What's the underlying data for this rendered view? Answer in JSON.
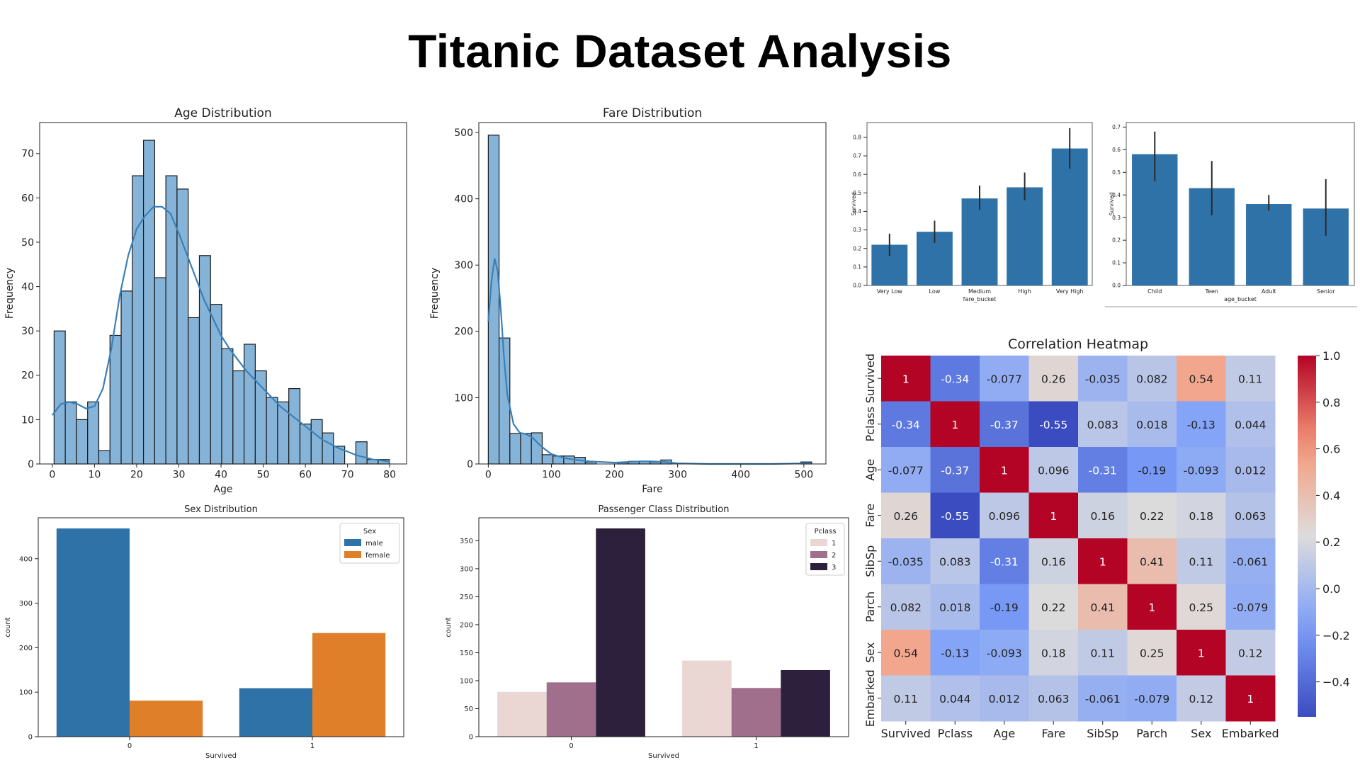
{
  "page": {
    "title": "Titanic Dataset Analysis"
  },
  "colors": {
    "hist_fill": "#86b4d8",
    "hist_line": "#3a80b8",
    "male": "#2e72a8",
    "female": "#e07f2a",
    "pclass1": "#ead7d3",
    "pclass2": "#a06f8c",
    "pclass3": "#2d203c",
    "bucket_bar": "#2e72a8"
  },
  "chart_data": [
    {
      "id": "age",
      "type": "bar",
      "title": "Age Distribution",
      "xlabel": "Age",
      "ylabel": "Frequency",
      "xlim": [
        -3,
        84
      ],
      "ylim": [
        0,
        77
      ],
      "xticks": [
        0,
        10,
        20,
        30,
        40,
        50,
        60,
        70,
        80
      ],
      "yticks": [
        0,
        10,
        20,
        30,
        40,
        50,
        60,
        70
      ],
      "bin_start": 0.42,
      "bin_width": 2.65,
      "values": [
        30,
        14,
        10,
        14,
        3,
        29,
        39,
        65,
        73,
        42,
        65,
        62,
        33,
        47,
        36,
        26,
        21,
        27,
        21,
        15,
        14,
        17,
        9,
        10,
        7,
        4,
        0,
        5,
        1,
        1
      ],
      "kde": {
        "x": [
          0,
          2,
          4,
          6,
          8,
          10,
          12,
          14,
          16,
          18,
          20,
          22,
          24,
          26,
          28,
          30,
          32,
          34,
          36,
          38,
          40,
          42,
          44,
          46,
          48,
          50,
          52,
          54,
          56,
          58,
          60,
          62,
          64,
          66,
          68,
          70,
          72,
          74,
          76,
          78,
          80
        ],
        "y": [
          11,
          13.5,
          14,
          13.5,
          12.5,
          13,
          17,
          26,
          38,
          47,
          53,
          56,
          58,
          58,
          56.5,
          52,
          47,
          42,
          37,
          33,
          29,
          26,
          23.5,
          21,
          19,
          17,
          15,
          13,
          11.5,
          10,
          8.5,
          7,
          5.5,
          4.5,
          3.5,
          2.8,
          2,
          1.5,
          1,
          0.8,
          0.5
        ]
      }
    },
    {
      "id": "fare",
      "type": "bar",
      "title": "Fare Distribution",
      "xlabel": "Fare",
      "ylabel": "Frequency",
      "xlim": [
        -15,
        535
      ],
      "ylim": [
        0,
        515
      ],
      "xticks": [
        0,
        100,
        200,
        300,
        400,
        500
      ],
      "yticks": [
        0,
        100,
        200,
        300,
        400,
        500
      ],
      "bin_start": 0,
      "bin_width": 17.08,
      "values": [
        496,
        190,
        46,
        46,
        47,
        14,
        12,
        12,
        10,
        3,
        0,
        0,
        2,
        4,
        4,
        3,
        6,
        0,
        0,
        0,
        0,
        0,
        0,
        0,
        0,
        0,
        0,
        0,
        0,
        3
      ],
      "kde": {
        "x": [
          0,
          5,
          10,
          15,
          20,
          25,
          30,
          40,
          50,
          60,
          70,
          80,
          90,
          100,
          120,
          140,
          160,
          180,
          200,
          220,
          240,
          260,
          280,
          300,
          350,
          400,
          450,
          500,
          512
        ],
        "y": [
          215,
          275,
          310,
          290,
          230,
          160,
          105,
          60,
          47,
          45,
          40,
          30,
          22,
          15,
          9,
          6,
          4,
          3,
          2,
          3,
          4,
          4,
          3,
          1,
          0,
          0,
          0,
          1,
          1
        ]
      }
    },
    {
      "id": "fare_bucket",
      "type": "bar",
      "categories": [
        "Very Low",
        "Low",
        "Medium",
        "High",
        "Very High"
      ],
      "values": [
        0.22,
        0.29,
        0.47,
        0.53,
        0.74
      ],
      "ci": [
        [
          0.16,
          0.28
        ],
        [
          0.23,
          0.35
        ],
        [
          0.41,
          0.54
        ],
        [
          0.46,
          0.61
        ],
        [
          0.63,
          0.85
        ]
      ],
      "xlabel": "fare_bucket",
      "ylabel": "Survived",
      "ylim": [
        0,
        0.88
      ],
      "yticks": [
        "0.0",
        "0.1",
        "0.2",
        "0.3",
        "0.4",
        "0.5",
        "0.6",
        "0.7",
        "0.8"
      ]
    },
    {
      "id": "age_bucket",
      "type": "bar",
      "categories": [
        "Child",
        "Teen",
        "Adult",
        "Senior"
      ],
      "values": [
        0.58,
        0.43,
        0.36,
        0.34
      ],
      "ci": [
        [
          0.46,
          0.68
        ],
        [
          0.31,
          0.55
        ],
        [
          0.33,
          0.4
        ],
        [
          0.22,
          0.47
        ]
      ],
      "xlabel": "age_bucket",
      "ylabel": "Survived",
      "ylim": [
        0,
        0.72
      ],
      "yticks": [
        "0.0",
        "0.1",
        "0.2",
        "0.3",
        "0.4",
        "0.5",
        "0.6",
        "0.7"
      ]
    },
    {
      "id": "sex",
      "type": "bar",
      "title": "Sex Distribution",
      "categories": [
        "0",
        "1"
      ],
      "series": [
        {
          "name": "male",
          "values": [
            468,
            109
          ]
        },
        {
          "name": "female",
          "values": [
            81,
            233
          ]
        }
      ],
      "xlabel": "Survived",
      "ylabel": "count",
      "ylim": [
        0,
        492
      ],
      "yticks": [
        0,
        100,
        200,
        300,
        400
      ],
      "legend": {
        "title": "Sex",
        "position": "top-right"
      }
    },
    {
      "id": "pclass",
      "type": "bar",
      "title": "Passenger Class Distribution",
      "categories": [
        "0",
        "1"
      ],
      "series": [
        {
          "name": "1",
          "values": [
            80,
            136
          ]
        },
        {
          "name": "2",
          "values": [
            97,
            87
          ]
        },
        {
          "name": "3",
          "values": [
            372,
            119
          ]
        }
      ],
      "xlabel": "Survived",
      "ylabel": "count",
      "ylim": [
        0,
        391
      ],
      "yticks": [
        0,
        50,
        100,
        150,
        200,
        250,
        300,
        350
      ],
      "legend": {
        "title": "Pclass",
        "position": "top-right"
      }
    },
    {
      "id": "corr",
      "type": "heatmap",
      "title": "Correlation Heatmap",
      "labels": [
        "Survived",
        "Pclass",
        "Age",
        "Fare",
        "SibSp",
        "Parch",
        "Sex",
        "Embarked"
      ],
      "matrix": [
        [
          "1",
          "-0.34",
          "-0.077",
          "0.26",
          "-0.035",
          "0.082",
          "0.54",
          "0.11"
        ],
        [
          "-0.34",
          "1",
          "-0.37",
          "-0.55",
          "0.083",
          "0.018",
          "-0.13",
          "0.044"
        ],
        [
          "-0.077",
          "-0.37",
          "1",
          "0.096",
          "-0.31",
          "-0.19",
          "-0.093",
          "0.012"
        ],
        [
          "0.26",
          "-0.55",
          "0.096",
          "1",
          "0.16",
          "0.22",
          "0.18",
          "0.063"
        ],
        [
          "-0.035",
          "0.083",
          "-0.31",
          "0.16",
          "1",
          "0.41",
          "0.11",
          "-0.061"
        ],
        [
          "0.082",
          "0.018",
          "-0.19",
          "0.22",
          "0.41",
          "1",
          "0.25",
          "-0.079"
        ],
        [
          "0.54",
          "-0.13",
          "-0.093",
          "0.18",
          "0.11",
          "0.25",
          "1",
          "0.12"
        ],
        [
          "0.11",
          "0.044",
          "0.012",
          "0.063",
          "-0.061",
          "-0.079",
          "0.12",
          "1"
        ]
      ],
      "vmin": -0.55,
      "vmax": 1.0,
      "colorbar_ticks": [
        "1.0",
        "0.8",
        "0.6",
        "0.4",
        "0.2",
        "0.0",
        "−0.2",
        "−0.4"
      ],
      "colorbar_values": [
        1.0,
        0.8,
        0.6,
        0.4,
        0.2,
        0.0,
        -0.2,
        -0.4
      ],
      "colormap": "coolwarm"
    }
  ]
}
